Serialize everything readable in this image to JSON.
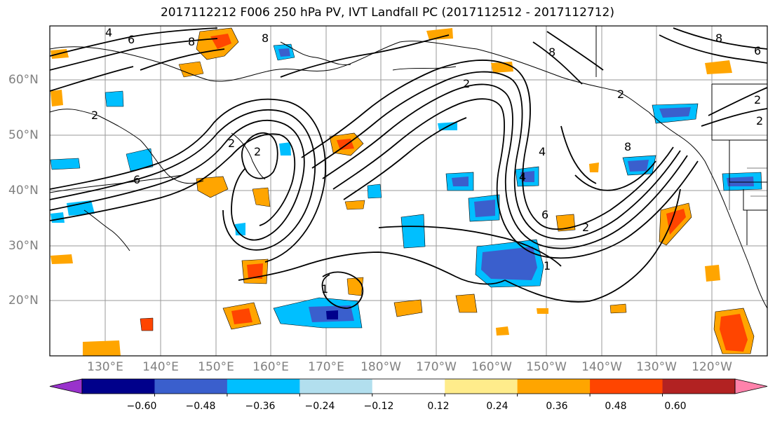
{
  "title": "2017112212 F006 250 hPa PV, IVT Landfall PC (2017112512 - 2017112712)",
  "lat_labels": [
    "60°N",
    "50°N",
    "40°N",
    "30°N",
    "20°N"
  ],
  "lon_labels": [
    "130°E",
    "140°E",
    "150°E",
    "160°E",
    "170°E",
    "180°W",
    "170°W",
    "160°W",
    "150°W",
    "140°W",
    "130°W",
    "120°W"
  ],
  "colorbar": {
    "tick_labels": [
      "−0.60",
      "−0.48",
      "−0.36",
      "−0.24",
      "−0.12",
      "0.12",
      "0.24",
      "0.36",
      "0.48",
      "0.60"
    ],
    "bins": [
      {
        "color": "#9932cc"
      },
      {
        "color": "#00008b"
      },
      {
        "color": "#3a5fcd"
      },
      {
        "color": "#00bfff"
      },
      {
        "color": "#b2dfee"
      },
      {
        "color": "#ffffff"
      },
      {
        "color": "#ffec8b"
      },
      {
        "color": "#ffa500"
      },
      {
        "color": "#ff4500"
      },
      {
        "color": "#b22222"
      },
      {
        "color": "#ff82ab"
      }
    ]
  },
  "contour_labels": [
    "8",
    "8",
    "8",
    "6",
    "4",
    "2",
    "2",
    "2",
    "2",
    "1",
    "1",
    "4",
    "6",
    "8",
    "6",
    "2",
    "2",
    "8",
    "2",
    "4",
    "6",
    "2"
  ]
}
